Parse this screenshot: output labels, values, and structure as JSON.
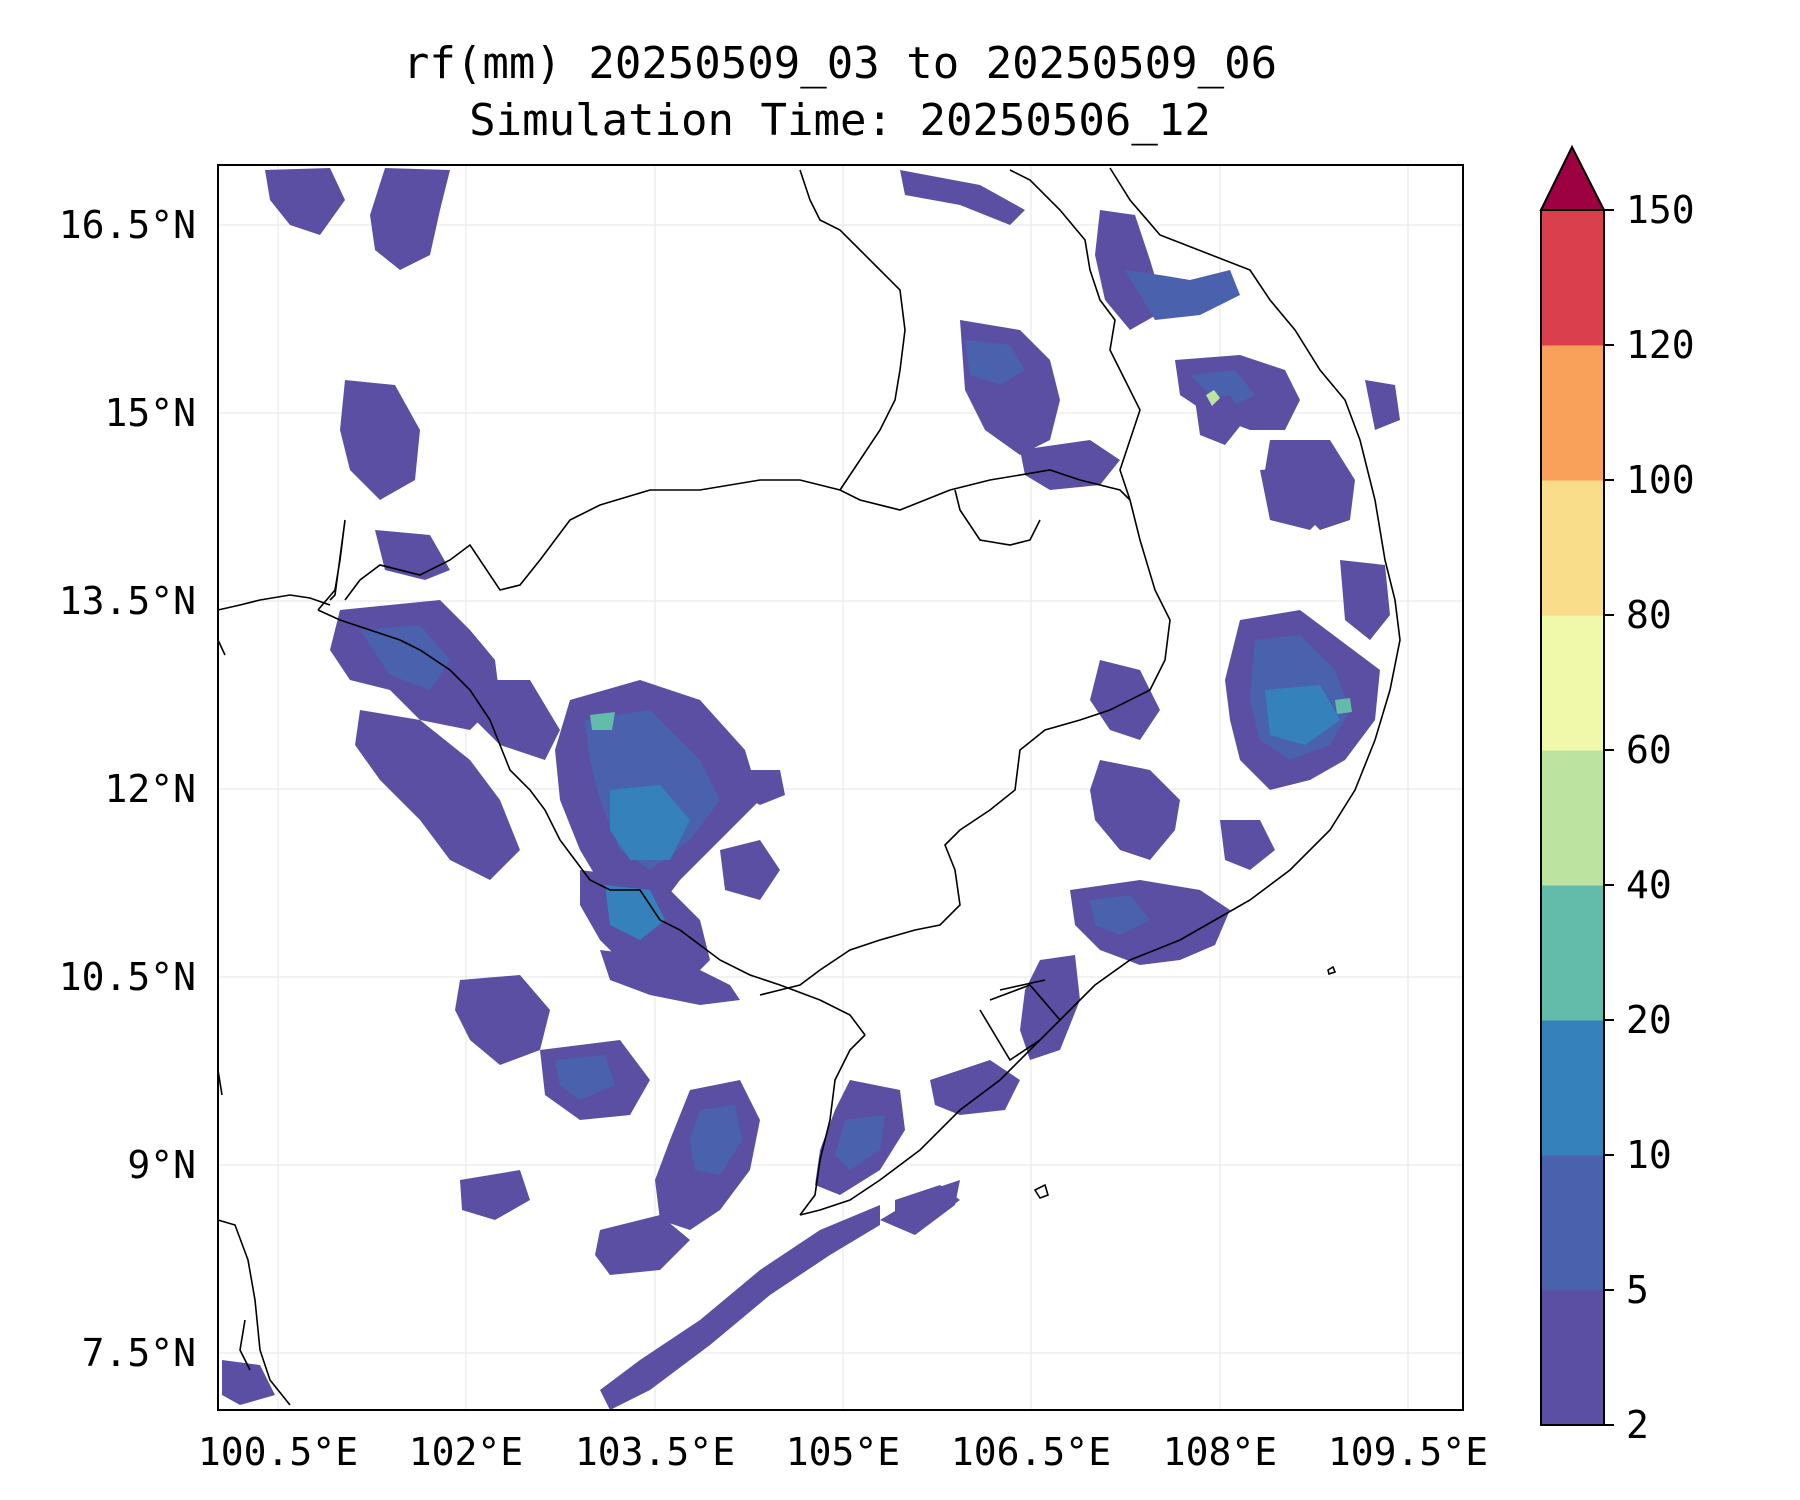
{
  "title_line1": "rf(mm) 20250509_03 to 20250509_06",
  "title_line2": "Simulation Time: 20250506_12",
  "lon_ticks": [
    "100.5°E",
    "102°E",
    "103.5°E",
    "105°E",
    "106.5°E",
    "108°E",
    "109.5°E"
  ],
  "lat_ticks": [
    "16.5°N",
    "15°N",
    "13.5°N",
    "12°N",
    "10.5°N",
    "9°N",
    "7.5°N"
  ],
  "colorbar": {
    "tick_labels": [
      "2",
      "5",
      "10",
      "20",
      "40",
      "60",
      "80",
      "100",
      "120",
      "150"
    ],
    "colors": [
      "#5a4fa3",
      "#4a62ad",
      "#3581bb",
      "#63bba9",
      "#bce4a0",
      "#f0f8a9",
      "#fadd8a",
      "#f9a05a",
      "#d93f4c"
    ],
    "extend_color": "#9e0142",
    "extend": "max"
  },
  "colors": {
    "rain_light": "#5a4fa3",
    "rain_mid": "#4a62ad",
    "rain_heavy": "#3581bb",
    "rain_peak": "#63bba9",
    "border": "#000000"
  }
}
